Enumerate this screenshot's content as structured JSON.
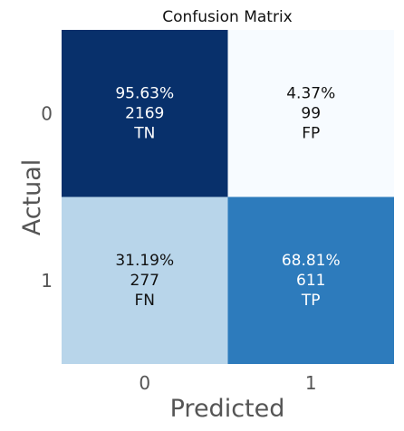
{
  "chart_data": {
    "type": "heatmap",
    "title": "Confusion Matrix",
    "xlabel": "Predicted",
    "ylabel": "Actual",
    "x_categories": [
      "0",
      "1"
    ],
    "y_categories": [
      "0",
      "1"
    ],
    "counts": [
      [
        2169,
        99
      ],
      [
        277,
        611
      ]
    ],
    "percent_labels": [
      [
        "95.63%",
        "4.37%"
      ],
      [
        "31.19%",
        "68.81%"
      ]
    ],
    "cell_tags": [
      [
        "TN",
        "FP"
      ],
      [
        "FN",
        "TP"
      ]
    ],
    "colormap": "Blues",
    "colorbar": false,
    "cell_colors": [
      [
        "#08306b",
        "#f7fbff"
      ],
      [
        "#b8d5ea",
        "#2d7bbc"
      ]
    ],
    "text_colors": [
      [
        "#ffffff",
        "#111111"
      ],
      [
        "#111111",
        "#ffffff"
      ]
    ]
  }
}
